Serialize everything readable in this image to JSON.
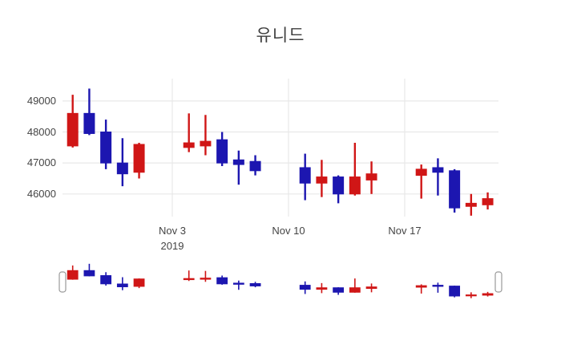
{
  "chart": {
    "title": "유니드",
    "background_color": "#ffffff",
    "grid_color": "#e8e8e8",
    "tick_text_color": "#444444",
    "title_color": "#3d3d3d",
    "rangeslider_handle_border": "#999999"
  },
  "chart_data": {
    "type": "candlestick",
    "title": "유니드",
    "x": [
      "2019-10-28",
      "2019-10-29",
      "2019-10-30",
      "2019-10-31",
      "2019-11-01",
      "2019-11-04",
      "2019-11-05",
      "2019-11-06",
      "2019-11-07",
      "2019-11-08",
      "2019-11-11",
      "2019-11-12",
      "2019-11-13",
      "2019-11-14",
      "2019-11-15",
      "2019-11-18",
      "2019-11-19",
      "2019-11-20",
      "2019-11-21",
      "2019-11-22"
    ],
    "open": [
      47550,
      48600,
      48000,
      47000,
      46700,
      47500,
      47550,
      47750,
      47100,
      47050,
      46850,
      46350,
      46550,
      46000,
      46450,
      46600,
      46850,
      46750,
      45600,
      45650
    ],
    "high": [
      49200,
      49400,
      48400,
      47800,
      47650,
      48600,
      48550,
      48000,
      47400,
      47250,
      47300,
      47100,
      46600,
      47650,
      47050,
      46950,
      47150,
      46800,
      46000,
      46050
    ],
    "low": [
      47500,
      47900,
      46800,
      46250,
      46500,
      47350,
      47250,
      46900,
      46300,
      46600,
      45800,
      45900,
      45700,
      45950,
      46000,
      45850,
      45950,
      45400,
      45300,
      45500
    ],
    "close": [
      48600,
      47950,
      47000,
      46650,
      47600,
      47650,
      47700,
      47000,
      46950,
      46750,
      46350,
      46550,
      46000,
      46550,
      46650,
      46800,
      46700,
      45550,
      45700,
      45850
    ],
    "yticks": [
      46000,
      47000,
      48000,
      49000
    ],
    "xticks": [
      {
        "label": "Nov 3",
        "year": "2019",
        "date": "2019-11-03"
      },
      {
        "label": "Nov 10",
        "year": "",
        "date": "2019-11-10"
      },
      {
        "label": "Nov 17",
        "year": "",
        "date": "2019-11-17"
      }
    ],
    "ylim": [
      45270,
      49670
    ],
    "xlabel": "",
    "ylabel": "",
    "grid": true,
    "legend": "none",
    "rangeslider": true,
    "increasing_color": "#d01616",
    "decreasing_color": "#1c16b0"
  }
}
